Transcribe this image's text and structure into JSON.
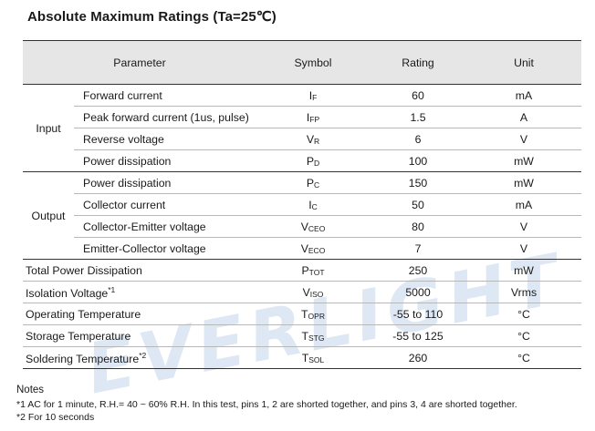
{
  "title": "Absolute Maximum Ratings (Ta=25℃)",
  "watermark": "EVERLIGHT",
  "columns": {
    "parameter": "Parameter",
    "symbol": "Symbol",
    "rating": "Rating",
    "unit": "Unit"
  },
  "groups": {
    "input": "Input",
    "output": "Output"
  },
  "rows": [
    {
      "parameter": "Forward current",
      "sym": "I",
      "sub": "F",
      "rating": "60",
      "unit": "mA"
    },
    {
      "parameter": "Peak forward current (1us, pulse)",
      "sym": "I",
      "sub": "FP",
      "rating": "1.5",
      "unit": "A"
    },
    {
      "parameter": "Reverse voltage",
      "sym": "V",
      "sub": "R",
      "rating": "6",
      "unit": "V"
    },
    {
      "parameter": "Power dissipation",
      "sym": "P",
      "sub": "D",
      "rating": "100",
      "unit": "mW"
    },
    {
      "parameter": "Power dissipation",
      "sym": "P",
      "sub": "C",
      "rating": "150",
      "unit": "mW"
    },
    {
      "parameter": "Collector current",
      "sym": "I",
      "sub": "C",
      "rating": "50",
      "unit": "mA"
    },
    {
      "parameter": "Collector-Emitter voltage",
      "sym": "V",
      "sub": "CEO",
      "rating": "80",
      "unit": "V"
    },
    {
      "parameter": "Emitter-Collector voltage",
      "sym": "V",
      "sub": "ECO",
      "rating": "7",
      "unit": "V"
    },
    {
      "parameter": "Total Power Dissipation",
      "sym": "P",
      "sub": "TOT",
      "rating": "250",
      "unit": "mW"
    },
    {
      "parameter": "Isolation Voltage",
      "sup": "*1",
      "sym": "V",
      "sub": "ISO",
      "rating": "5000",
      "unit": "Vrms"
    },
    {
      "parameter": "Operating Temperature",
      "sym": "T",
      "sub": "OPR",
      "rating": "-55 to 110",
      "unit": "°C"
    },
    {
      "parameter": "Storage Temperature",
      "sym": "T",
      "sub": "STG",
      "rating": "-55 to 125",
      "unit": "°C"
    },
    {
      "parameter": "Soldering Temperature",
      "sup": "*2",
      "sym": "T",
      "sub": "SOL",
      "rating": "260",
      "unit": "°C"
    }
  ],
  "notes": {
    "heading": "Notes",
    "items": [
      "*1 AC for 1 minute, R.H.= 40 ~ 60% R.H. In this test, pins 1, 2 are shorted together, and pins 3, 4 are shorted together.",
      "*2 For 10 seconds"
    ]
  }
}
